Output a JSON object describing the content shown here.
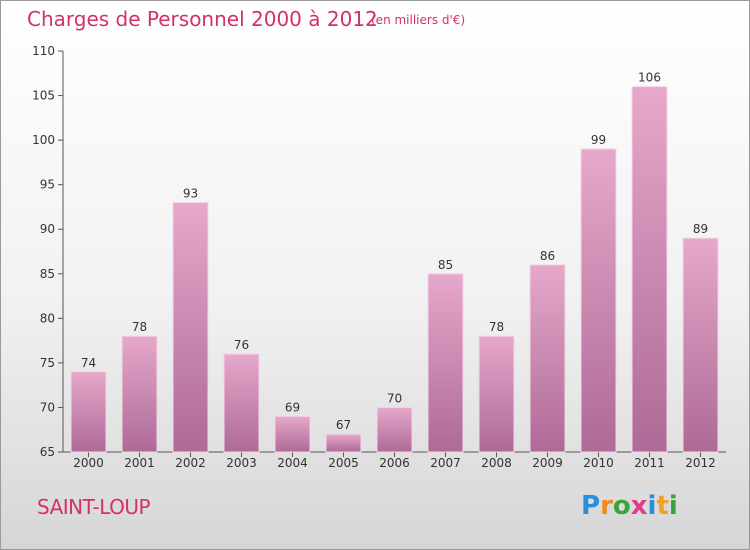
{
  "title": "Charges de Personnel 2000 à 2012",
  "subtitle": "(en milliers d'€)",
  "commune": "SAINT-LOUP",
  "logo": {
    "text": "Proxiti",
    "letters": [
      "P",
      "r",
      "o",
      "x",
      "i",
      "t",
      "i"
    ],
    "colors": [
      "#2a8fd8",
      "#f08a1e",
      "#3aa33a",
      "#e03a8a",
      "#2a8fd8",
      "#f0a21e",
      "#3aa33a"
    ]
  },
  "colors": {
    "bar_top": "#e6a8cb",
    "bar_bottom": "#ad6a96",
    "title": "#d4306e"
  },
  "chart_data": {
    "type": "bar",
    "categories": [
      "2000",
      "2001",
      "2002",
      "2003",
      "2004",
      "2005",
      "2006",
      "2007",
      "2008",
      "2009",
      "2010",
      "2011",
      "2012"
    ],
    "values": [
      74,
      78,
      93,
      76,
      69,
      67,
      70,
      85,
      78,
      86,
      99,
      106,
      89
    ],
    "title": "Charges de Personnel 2000 à 2012",
    "subtitle": "(en milliers d'€)",
    "ylim": [
      65,
      110
    ],
    "yticks": [
      65,
      70,
      75,
      80,
      85,
      90,
      95,
      100,
      105,
      110
    ],
    "grid": false,
    "legend": "none"
  }
}
